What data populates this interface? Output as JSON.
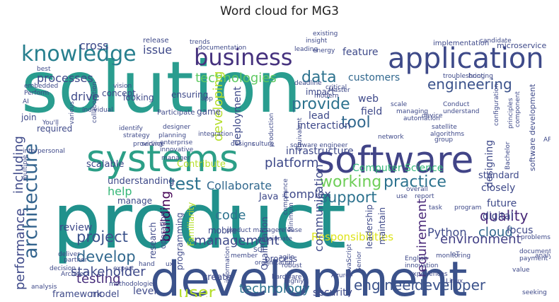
{
  "chart_data": {
    "type": "wordcloud",
    "title": "Word cloud for MG3",
    "words": [
      {
        "text": "solution",
        "color": "#2a9d8f"
      },
      {
        "text": "product",
        "color": "#21918c"
      },
      {
        "text": "development",
        "color": "#3b528b"
      },
      {
        "text": "systems",
        "color": "#2c9f87"
      },
      {
        "text": "software",
        "color": "#414487"
      },
      {
        "text": "application",
        "color": "#3e4a89"
      },
      {
        "text": "business",
        "color": "#46327e"
      },
      {
        "text": "knowledge",
        "color": "#277f8e"
      },
      {
        "text": "architecture",
        "color": "#33638d"
      },
      {
        "text": "engineering",
        "color": "#3b528b"
      },
      {
        "text": "technologies",
        "color": "#5ec962"
      },
      {
        "text": "platform",
        "color": "#3e4989"
      },
      {
        "text": "testing",
        "color": "#472d7b"
      },
      {
        "text": "support",
        "color": "#2c728e"
      },
      {
        "text": "project",
        "color": "#3b528b"
      },
      {
        "text": "develop",
        "color": "#31688e"
      },
      {
        "text": "test",
        "color": "#2c728e"
      },
      {
        "text": "working",
        "color": "#6ece58"
      },
      {
        "text": "practice",
        "color": "#2c728e"
      },
      {
        "text": "requirement",
        "color": "#482878"
      },
      {
        "text": "performance",
        "color": "#3e4989"
      },
      {
        "text": "including",
        "color": "#3e4989"
      },
      {
        "text": "data",
        "color": "#2c728e"
      },
      {
        "text": "provide",
        "color": "#2c728e"
      },
      {
        "text": "quality",
        "color": "#482878"
      },
      {
        "text": "user",
        "color": "#b5de2b"
      },
      {
        "text": "technology",
        "color": "#2c728e"
      },
      {
        "text": "engineer",
        "color": "#3b528b"
      },
      {
        "text": "developer",
        "color": "#3b528b"
      },
      {
        "text": "environment",
        "color": "#424086"
      },
      {
        "text": "stakeholder",
        "color": "#3e4989"
      },
      {
        "text": "management",
        "color": "#3e4989"
      },
      {
        "text": "Responsibilities",
        "color": "#dde318"
      },
      {
        "text": "processes",
        "color": "#3e4989"
      },
      {
        "text": "customers",
        "color": "#31688e"
      },
      {
        "text": "feature",
        "color": "#3e4989"
      },
      {
        "text": "issue",
        "color": "#3e4989"
      },
      {
        "text": "cross",
        "color": "#3e4989"
      },
      {
        "text": "tool",
        "color": "#31688e"
      },
      {
        "text": "complex",
        "color": "#3e4989"
      },
      {
        "text": "Collaborate",
        "color": "#31688e"
      },
      {
        "text": "building",
        "color": "#440154"
      },
      {
        "text": "code",
        "color": "#2c728e"
      },
      {
        "text": "cloud",
        "color": "#31688e"
      },
      {
        "text": "Python",
        "color": "#3e4989"
      },
      {
        "text": "drive",
        "color": "#3e4989"
      },
      {
        "text": "level",
        "color": "#3e4989"
      },
      {
        "text": "help",
        "color": "#35b779"
      },
      {
        "text": "review",
        "color": "#3e4989"
      },
      {
        "text": "closely",
        "color": "#3e4989"
      },
      {
        "text": "future",
        "color": "#3e4989"
      },
      {
        "text": "focus",
        "color": "#3e4989"
      },
      {
        "text": "digital",
        "color": "#3e4989"
      },
      {
        "text": "designing",
        "color": "#3e4989"
      },
      {
        "text": "developing",
        "color": "#b5de2b"
      },
      {
        "text": "deployment",
        "color": "#3e4989"
      },
      {
        "text": "communication",
        "color": "#3e4989"
      },
      {
        "text": "leadership",
        "color": "#3e4989"
      },
      {
        "text": "maintain",
        "color": "#3e4989"
      },
      {
        "text": "security",
        "color": "#3e4989"
      },
      {
        "text": "framework",
        "color": "#3e4989"
      },
      {
        "text": "model",
        "color": "#3e4989"
      },
      {
        "text": "Computer Science",
        "color": "#35b779"
      },
      {
        "text": "infrastructure",
        "color": "#3e4989"
      },
      {
        "text": "interaction",
        "color": "#3e4989"
      },
      {
        "text": "field",
        "color": "#3e4989"
      },
      {
        "text": "web",
        "color": "#3e4989"
      },
      {
        "text": "lead",
        "color": "#3e4989"
      },
      {
        "text": "impact",
        "color": "#3e4989"
      },
      {
        "text": "concept",
        "color": "#3e4989"
      },
      {
        "text": "looking",
        "color": "#3e4989"
      },
      {
        "text": "ensuring",
        "color": "#3e4989"
      },
      {
        "text": "required",
        "color": "#3e4989"
      },
      {
        "text": "join",
        "color": "#3e4989"
      },
      {
        "text": "scalable",
        "color": "#3e4989"
      },
      {
        "text": "understanding",
        "color": "#3e4989"
      },
      {
        "text": "Java",
        "color": "#3e4989"
      },
      {
        "text": "standard",
        "color": "#3e4989"
      },
      {
        "text": "manage",
        "color": "#3e4989"
      },
      {
        "text": "create",
        "color": "#3e4989"
      },
      {
        "text": "process",
        "color": "#3e4989"
      },
      {
        "text": "mobile",
        "color": "#3e4989"
      },
      {
        "text": "Familiarity",
        "color": "#b5de2b"
      },
      {
        "text": "programming",
        "color": "#3e4989"
      },
      {
        "text": "research",
        "color": "#3e4989"
      },
      {
        "text": "operation",
        "color": "#3e4989"
      },
      {
        "text": "Contribute",
        "color": "#b5de2b"
      },
      {
        "text": "game",
        "color": "#3e4989"
      },
      {
        "text": "Qualification",
        "color": "#3e4989"
      },
      {
        "text": "software development",
        "color": "#3e4989"
      },
      {
        "text": "microservice",
        "color": "#3e4989"
      },
      {
        "text": "implementation",
        "color": "#3e4989"
      },
      {
        "text": "candidate",
        "color": "#3e4989"
      },
      {
        "text": "release",
        "color": "#3e4989"
      },
      {
        "text": "trends",
        "color": "#3e4989"
      },
      {
        "text": "Perform",
        "color": "#3e4989"
      },
      {
        "text": "embedded",
        "color": "#3e4989"
      },
      {
        "text": "vision",
        "color": "#3e4989"
      },
      {
        "text": "Participate",
        "color": "#3e4989"
      },
      {
        "text": "identify",
        "color": "#3e4989"
      },
      {
        "text": "strategy",
        "color": "#3e4989"
      },
      {
        "text": "providing",
        "color": "#3e4989"
      },
      {
        "text": "planning",
        "color": "#3e4989"
      },
      {
        "text": "enterprise",
        "color": "#3e4989"
      },
      {
        "text": "innovative",
        "color": "#3e4989"
      },
      {
        "text": "designer",
        "color": "#3e4989"
      },
      {
        "text": "manager",
        "color": "#3e4989"
      },
      {
        "text": "integration",
        "color": "#3e4989"
      },
      {
        "text": "production",
        "color": "#3e4989"
      },
      {
        "text": "modern",
        "color": "#3e4989"
      },
      {
        "text": "Master",
        "color": "#3e4989"
      },
      {
        "text": "critical",
        "color": "#3e4989"
      },
      {
        "text": "scale",
        "color": "#3e4989"
      },
      {
        "text": "managing",
        "color": "#3e4989"
      },
      {
        "text": "automation",
        "color": "#3e4989"
      },
      {
        "text": "device",
        "color": "#3e4989"
      },
      {
        "text": "Conduct",
        "color": "#3e4989"
      },
      {
        "text": "understand",
        "color": "#3e4989"
      },
      {
        "text": "satellite",
        "color": "#3e4989"
      },
      {
        "text": "algorithms",
        "color": "#3e4989"
      },
      {
        "text": "configuration",
        "color": "#3e4989"
      },
      {
        "text": "principles",
        "color": "#3e4989"
      },
      {
        "text": "component",
        "color": "#3e4989"
      },
      {
        "text": "bring",
        "color": "#3e4989"
      },
      {
        "text": "troubleshooting",
        "color": "#3e4989"
      },
      {
        "text": "collaboration",
        "color": "#3e4989"
      },
      {
        "text": "interpersonal",
        "color": "#3e4989"
      },
      {
        "text": "multiple",
        "color": "#3e4989"
      },
      {
        "text": "service",
        "color": "#3e4989"
      },
      {
        "text": "designs",
        "color": "#3e4989"
      },
      {
        "text": "culture",
        "color": "#3e4989"
      },
      {
        "text": "software engineer",
        "color": "#3e4989"
      },
      {
        "text": "equivalent",
        "color": "#3e4989"
      },
      {
        "text": "network",
        "color": "#3e4989"
      },
      {
        "text": "group",
        "color": "#3e4989"
      },
      {
        "text": "Bachelor",
        "color": "#3e4989"
      },
      {
        "text": "overall",
        "color": "#3e4989"
      },
      {
        "text": "use",
        "color": "#3e4989"
      },
      {
        "text": "report",
        "color": "#3e4989"
      },
      {
        "text": "release",
        "color": "#3e4989"
      },
      {
        "text": "passionate",
        "color": "#3e4989"
      },
      {
        "text": "Minimum",
        "color": "#3e4989"
      },
      {
        "text": "agile",
        "color": "#3e4989"
      },
      {
        "text": "member",
        "color": "#3e4989"
      },
      {
        "text": "product manager",
        "color": "#3e4989"
      },
      {
        "text": "compliance",
        "color": "#3e4989"
      },
      {
        "text": "organization",
        "color": "#3e4989"
      },
      {
        "text": "robust",
        "color": "#3e4989"
      },
      {
        "text": "Azure",
        "color": "#3e4989"
      },
      {
        "text": "JavaScript",
        "color": "#3e4989"
      },
      {
        "text": "Senior",
        "color": "#3e4989"
      },
      {
        "text": "English",
        "color": "#3e4989"
      },
      {
        "text": "innovation",
        "color": "#3e4989"
      },
      {
        "text": "monitoring",
        "color": "#3e4989"
      },
      {
        "text": "document",
        "color": "#3e4989"
      },
      {
        "text": "payment",
        "color": "#3e4989"
      },
      {
        "text": "problems",
        "color": "#3e4989"
      },
      {
        "text": "value",
        "color": "#3e4989"
      },
      {
        "text": "analyze",
        "color": "#3e4989"
      },
      {
        "text": "Linux",
        "color": "#3e4989"
      },
      {
        "text": "seeking",
        "color": "#3e4989"
      },
      {
        "text": "highly",
        "color": "#3e4989"
      },
      {
        "text": "hardware",
        "color": "#3e4989"
      },
      {
        "text": "information",
        "color": "#3e4989"
      },
      {
        "text": "methodologies",
        "color": "#3e4989"
      },
      {
        "text": "decision",
        "color": "#3e4989"
      },
      {
        "text": "expert",
        "color": "#3e4989"
      },
      {
        "text": "Architect",
        "color": "#3e4989"
      },
      {
        "text": "deliver",
        "color": "#3e4989"
      },
      {
        "text": "partner",
        "color": "#3e4989"
      },
      {
        "text": "analysis",
        "color": "#3e4989"
      },
      {
        "text": "hand",
        "color": "#3e4989"
      },
      {
        "text": "ux",
        "color": "#3e4989"
      },
      {
        "text": "various",
        "color": "#3e4989"
      },
      {
        "text": "You'll",
        "color": "#3e4989"
      },
      {
        "text": "documentation",
        "color": "#3e4989"
      },
      {
        "text": "individual",
        "color": "#3e4989"
      },
      {
        "text": "insight",
        "color": "#3e4989"
      },
      {
        "text": "energy",
        "color": "#3e4989"
      },
      {
        "text": "leading",
        "color": "#3e4989"
      },
      {
        "text": "existing",
        "color": "#3e4989"
      },
      {
        "text": "app",
        "color": "#3e4989"
      },
      {
        "text": "AI",
        "color": "#3e4989"
      },
      {
        "text": "API",
        "color": "#3e4989"
      },
      {
        "text": "SQL",
        "color": "#3e4989"
      },
      {
        "text": "program",
        "color": "#3e4989"
      },
      {
        "text": "task",
        "color": "#3e4989"
      },
      {
        "text": "experiences",
        "color": "#3e4989"
      },
      {
        "text": "IoT",
        "color": "#3e4989"
      },
      {
        "text": "deadline",
        "color": "#3e4989"
      },
      {
        "text": "best",
        "color": "#3e4989"
      }
    ]
  }
}
